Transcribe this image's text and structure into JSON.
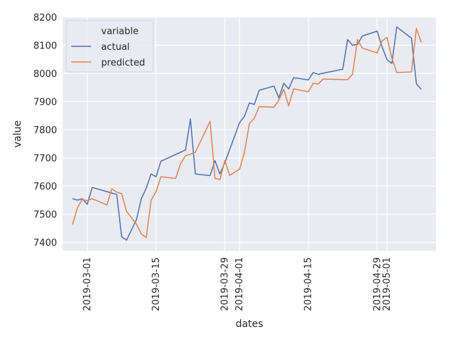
{
  "chart_data": {
    "type": "line",
    "xlabel": "dates",
    "ylabel": "value",
    "xlim": [
      "2019-02-24",
      "2019-05-11"
    ],
    "ylim": [
      7370,
      8200
    ],
    "x_ticks": [
      "2019-03-01",
      "2019-03-15",
      "2019-03-29",
      "2019-04-01",
      "2019-04-15",
      "2019-04-29",
      "2019-05-01"
    ],
    "y_ticks": [
      7400,
      7500,
      7600,
      7700,
      7800,
      7900,
      8000,
      8100,
      8200
    ],
    "grid": true,
    "legend": {
      "title": "variable",
      "placement": "top-left"
    },
    "series": [
      {
        "name": "actual",
        "color": "#4c72b0",
        "points": [
          [
            "2019-02-26",
            7555
          ],
          [
            "2019-02-27",
            7550
          ],
          [
            "2019-02-28",
            7555
          ],
          [
            "2019-03-01",
            7535
          ],
          [
            "2019-03-02",
            7595
          ],
          [
            "2019-03-05",
            7580
          ],
          [
            "2019-03-06",
            7575
          ],
          [
            "2019-03-07",
            7570
          ],
          [
            "2019-03-08",
            7420
          ],
          [
            "2019-03-09",
            7408
          ],
          [
            "2019-03-11",
            7480
          ],
          [
            "2019-03-12",
            7555
          ],
          [
            "2019-03-13",
            7592
          ],
          [
            "2019-03-14",
            7643
          ],
          [
            "2019-03-15",
            7633
          ],
          [
            "2019-03-16",
            7688
          ],
          [
            "2019-03-21",
            7728
          ],
          [
            "2019-03-22",
            7838
          ],
          [
            "2019-03-23",
            7643
          ],
          [
            "2019-03-26",
            7637
          ],
          [
            "2019-03-27",
            7690
          ],
          [
            "2019-03-28",
            7643
          ],
          [
            "2019-03-29",
            7683
          ],
          [
            "2019-03-30",
            7730
          ],
          [
            "2019-04-01",
            7825
          ],
          [
            "2019-04-02",
            7848
          ],
          [
            "2019-04-03",
            7895
          ],
          [
            "2019-04-04",
            7890
          ],
          [
            "2019-04-05",
            7940
          ],
          [
            "2019-04-08",
            7955
          ],
          [
            "2019-04-09",
            7913
          ],
          [
            "2019-04-10",
            7965
          ],
          [
            "2019-04-11",
            7945
          ],
          [
            "2019-04-12",
            7985
          ],
          [
            "2019-04-15",
            7977
          ],
          [
            "2019-04-16",
            8003
          ],
          [
            "2019-04-17",
            7997
          ],
          [
            "2019-04-22",
            8015
          ],
          [
            "2019-04-23",
            8120
          ],
          [
            "2019-04-24",
            8100
          ],
          [
            "2019-04-25",
            8103
          ],
          [
            "2019-04-26",
            8133
          ],
          [
            "2019-04-29",
            8150
          ],
          [
            "2019-04-30",
            8095
          ],
          [
            "2019-05-01",
            8050
          ],
          [
            "2019-05-02",
            8035
          ],
          [
            "2019-05-03",
            8165
          ],
          [
            "2019-05-06",
            8125
          ],
          [
            "2019-05-07",
            7963
          ],
          [
            "2019-05-08",
            7943
          ]
        ]
      },
      {
        "name": "predicted",
        "color": "#dd8452",
        "points": [
          [
            "2019-02-26",
            7463
          ],
          [
            "2019-02-27",
            7523
          ],
          [
            "2019-02-28",
            7553
          ],
          [
            "2019-03-01",
            7548
          ],
          [
            "2019-03-02",
            7555
          ],
          [
            "2019-03-05",
            7533
          ],
          [
            "2019-03-06",
            7590
          ],
          [
            "2019-03-07",
            7578
          ],
          [
            "2019-03-08",
            7573
          ],
          [
            "2019-03-09",
            7510
          ],
          [
            "2019-03-11",
            7465
          ],
          [
            "2019-03-12",
            7430
          ],
          [
            "2019-03-13",
            7417
          ],
          [
            "2019-03-14",
            7550
          ],
          [
            "2019-03-15",
            7580
          ],
          [
            "2019-03-16",
            7633
          ],
          [
            "2019-03-19",
            7627
          ],
          [
            "2019-03-20",
            7680
          ],
          [
            "2019-03-21",
            7708
          ],
          [
            "2019-03-22",
            7713
          ],
          [
            "2019-03-23",
            7720
          ],
          [
            "2019-03-26",
            7830
          ],
          [
            "2019-03-27",
            7627
          ],
          [
            "2019-03-28",
            7623
          ],
          [
            "2019-03-29",
            7690
          ],
          [
            "2019-03-30",
            7638
          ],
          [
            "2019-04-01",
            7660
          ],
          [
            "2019-04-02",
            7720
          ],
          [
            "2019-04-03",
            7822
          ],
          [
            "2019-04-04",
            7840
          ],
          [
            "2019-04-05",
            7882
          ],
          [
            "2019-04-08",
            7880
          ],
          [
            "2019-04-09",
            7905
          ],
          [
            "2019-04-10",
            7943
          ],
          [
            "2019-04-11",
            7885
          ],
          [
            "2019-04-12",
            7945
          ],
          [
            "2019-04-15",
            7935
          ],
          [
            "2019-04-16",
            7965
          ],
          [
            "2019-04-17",
            7962
          ],
          [
            "2019-04-18",
            7980
          ],
          [
            "2019-04-22",
            7978
          ],
          [
            "2019-04-23",
            7978
          ],
          [
            "2019-04-24",
            7997
          ],
          [
            "2019-04-25",
            8120
          ],
          [
            "2019-04-26",
            8090
          ],
          [
            "2019-04-29",
            8073
          ],
          [
            "2019-04-30",
            8115
          ],
          [
            "2019-05-01",
            8128
          ],
          [
            "2019-05-02",
            8055
          ],
          [
            "2019-05-03",
            8003
          ],
          [
            "2019-05-06",
            8005
          ],
          [
            "2019-05-07",
            8160
          ],
          [
            "2019-05-08",
            8110
          ]
        ]
      }
    ]
  }
}
